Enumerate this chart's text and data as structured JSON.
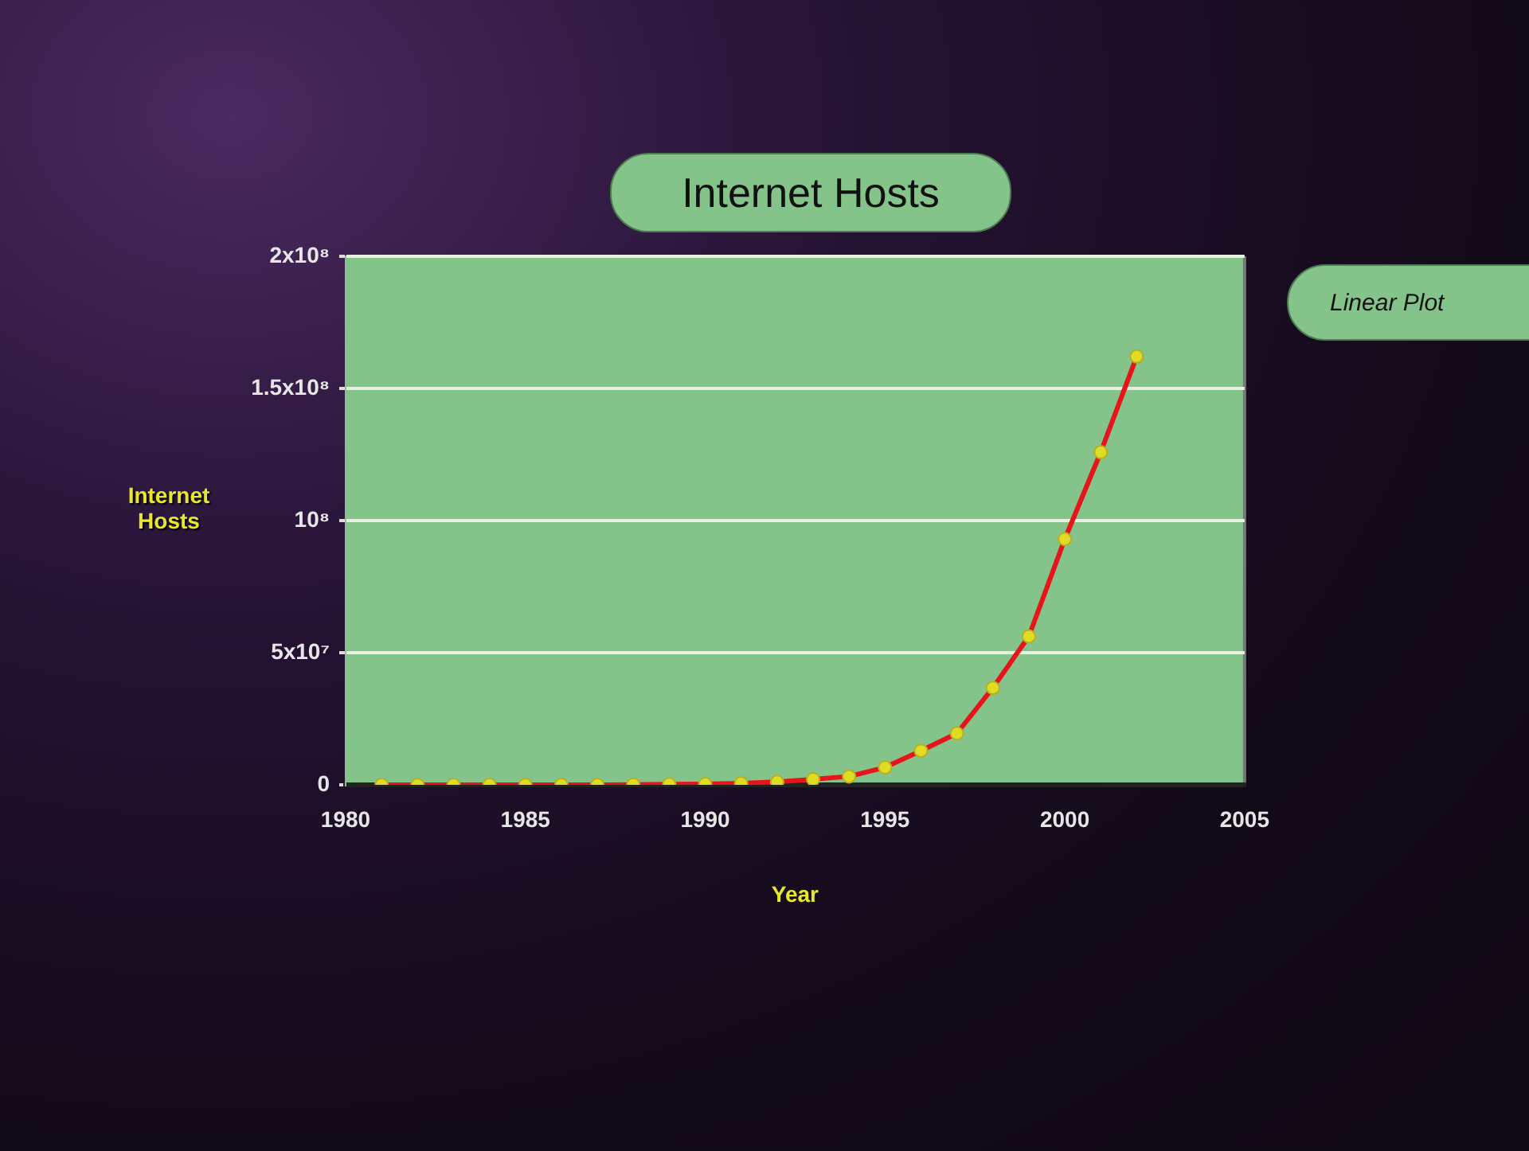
{
  "chart_data": {
    "type": "line",
    "title": "Internet Hosts",
    "xlabel": "Year",
    "ylabel": "Internet Hosts",
    "annotations": [
      "Linear Plot"
    ],
    "x": [
      1981,
      1982,
      1983,
      1984,
      1985,
      1986,
      1987,
      1988,
      1989,
      1990,
      1991,
      1992,
      1993,
      1994,
      1995,
      1996,
      1997,
      1998,
      1999,
      2000,
      2001,
      2002
    ],
    "series": [
      {
        "color": "#e8141c",
        "values": [
          0,
          0,
          0,
          0,
          0,
          0,
          0,
          100000,
          200000,
          300000,
          600000,
          1100000,
          2100000,
          3200000,
          6600000,
          12900000,
          19500000,
          36700000,
          56200000,
          93000000,
          125900000,
          162100000
        ]
      }
    ],
    "xlim": [
      1980,
      2005
    ],
    "xticks": [
      1980,
      1985,
      1990,
      1995,
      2000,
      2005
    ],
    "ylim": [
      0,
      200000000
    ],
    "yticks": [
      0,
      {
        "value": 50000000,
        "label": "5x10⁷"
      },
      {
        "value": 100000000,
        "label": "10⁸"
      },
      {
        "value": 150000000,
        "label": "1.5x10⁸"
      },
      {
        "value": 200000000,
        "label": "2x10⁸"
      }
    ],
    "grid": "y",
    "marker": "circle",
    "line_style": "solid",
    "legend": false
  }
}
